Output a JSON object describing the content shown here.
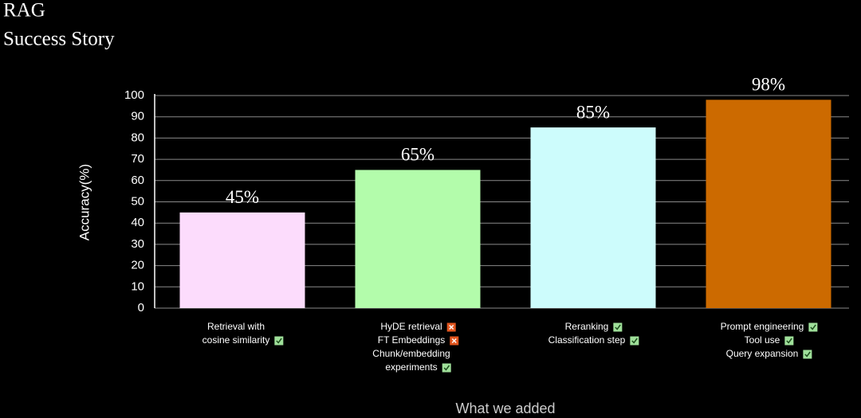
{
  "chart_data": {
    "type": "bar",
    "title": "RAG",
    "subtitle": "Success Story",
    "ylabel": "Accuracy(%)",
    "xlabel": "What we added",
    "categories": [
      [
        {
          "lines": [
            "Retrieval with",
            "cosine similarity"
          ],
          "status": "check"
        }
      ],
      [
        {
          "lines": [
            "HyDE retrieval"
          ],
          "status": "cross"
        },
        {
          "lines": [
            "FT Embeddings"
          ],
          "status": "cross"
        },
        {
          "lines": [
            "Chunk/embedding",
            "experiments"
          ],
          "status": "check"
        }
      ],
      [
        {
          "lines": [
            "Reranking"
          ],
          "status": "check"
        },
        {
          "lines": [
            "Classification step"
          ],
          "status": "check"
        }
      ],
      [
        {
          "lines": [
            "Prompt engineering"
          ],
          "status": "check"
        },
        {
          "lines": [
            "Tool use"
          ],
          "status": "check"
        },
        {
          "lines": [
            "Query expansion"
          ],
          "status": "check"
        }
      ]
    ],
    "values": [
      45,
      65,
      85,
      98
    ],
    "value_labels": [
      "45%",
      "65%",
      "85%",
      "98%"
    ],
    "colors": [
      "#fcdcfc",
      "#b3fcab",
      "#cdfcfc",
      "#cc6a00"
    ],
    "status_colors": {
      "check": "#9fe09a",
      "cross": "#e2561f"
    },
    "ylim": [
      0,
      100
    ],
    "yticks": [
      0,
      10,
      20,
      30,
      40,
      50,
      60,
      70,
      80,
      90,
      100
    ],
    "grid": true
  }
}
